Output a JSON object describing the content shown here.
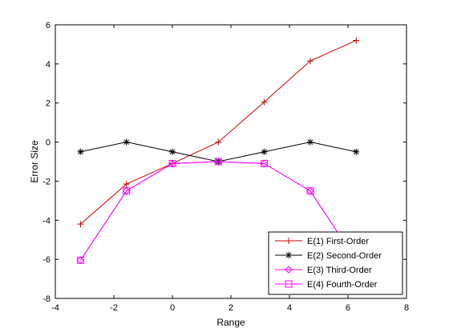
{
  "chart_data": {
    "type": "line",
    "title": "",
    "xlabel": "Range",
    "ylabel": "Error Size",
    "xlim": [
      -4,
      8
    ],
    "ylim": [
      -8,
      6
    ],
    "xticks": [
      -4,
      -2,
      0,
      2,
      4,
      6,
      8
    ],
    "yticks": [
      -8,
      -6,
      -4,
      -2,
      0,
      2,
      4,
      6
    ],
    "x": [
      -3.14,
      -1.57,
      0,
      1.57,
      3.14,
      4.71,
      6.28
    ],
    "grid": false,
    "legend_position": "bottom-right",
    "series": [
      {
        "name": "E(1) First-Order",
        "color": "#cc0000",
        "marker": "plus",
        "values": [
          -4.2,
          -2.15,
          -1.1,
          0.0,
          2.05,
          4.15,
          5.2
        ]
      },
      {
        "name": "E(2) Second-Order",
        "color": "#000000",
        "marker": "star",
        "values": [
          -0.5,
          0.0,
          -0.5,
          -1.0,
          -0.5,
          0.0,
          -0.5
        ]
      },
      {
        "name": "E(3) Third-Order",
        "color": "#ff00ff",
        "marker": "diamond",
        "values": [
          -6.05,
          -2.5,
          -1.1,
          -1.0,
          -1.1,
          -2.5,
          -6.05
        ]
      },
      {
        "name": "E(4) Fourth-Order",
        "color": "#ff00ff",
        "marker": "square",
        "values": [
          -6.05,
          -2.5,
          -1.1,
          -1.0,
          -1.1,
          -2.5,
          -6.05
        ]
      }
    ]
  }
}
